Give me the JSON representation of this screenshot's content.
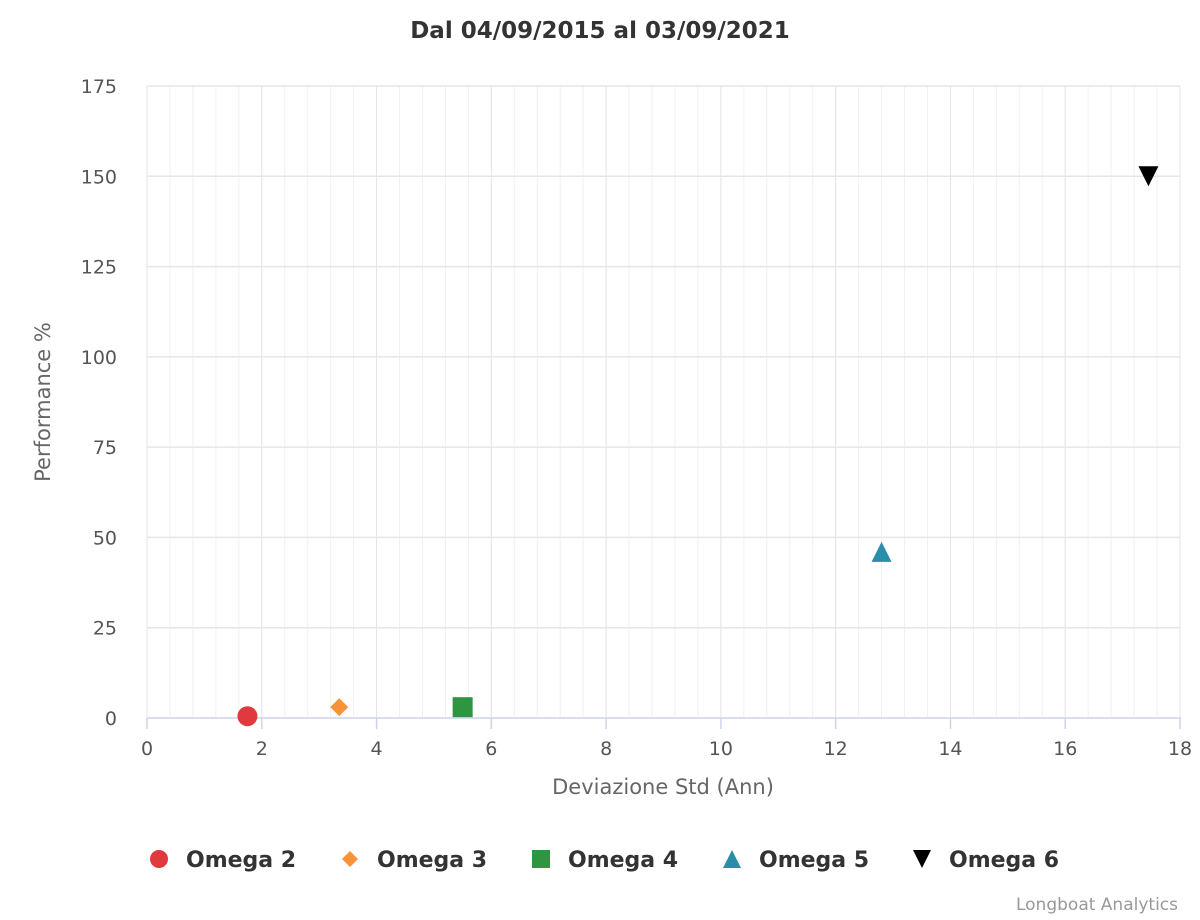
{
  "chart_data": {
    "type": "scatter",
    "title": "Dal 04/09/2015 al 03/09/2021",
    "xlabel": "Deviazione Std (Ann)",
    "ylabel": "Performance %",
    "xlim": [
      0,
      18
    ],
    "ylim": [
      0,
      175
    ],
    "x_ticks": [
      0,
      2,
      4,
      6,
      8,
      10,
      12,
      14,
      16,
      18
    ],
    "y_ticks": [
      0,
      25,
      50,
      75,
      100,
      125,
      150,
      175
    ],
    "x_minor_step": 0.4,
    "grid": true,
    "legend_position": "bottom",
    "series": [
      {
        "name": "Omega 2",
        "x": [
          1.75
        ],
        "y": [
          0.5
        ],
        "marker": "circle",
        "color": "#e03a3e"
      },
      {
        "name": "Omega 3",
        "x": [
          3.35
        ],
        "y": [
          3.0
        ],
        "marker": "diamond",
        "color": "#f7943a"
      },
      {
        "name": "Omega 4",
        "x": [
          5.5
        ],
        "y": [
          3.0
        ],
        "marker": "square",
        "color": "#2e9641"
      },
      {
        "name": "Omega 5",
        "x": [
          12.8
        ],
        "y": [
          46.0
        ],
        "marker": "triangle-up",
        "color": "#2a8ea8"
      },
      {
        "name": "Omega 6",
        "x": [
          17.45
        ],
        "y": [
          150.0
        ],
        "marker": "triangle-down",
        "color": "#000000"
      }
    ]
  },
  "credits": "Longboat Analytics"
}
